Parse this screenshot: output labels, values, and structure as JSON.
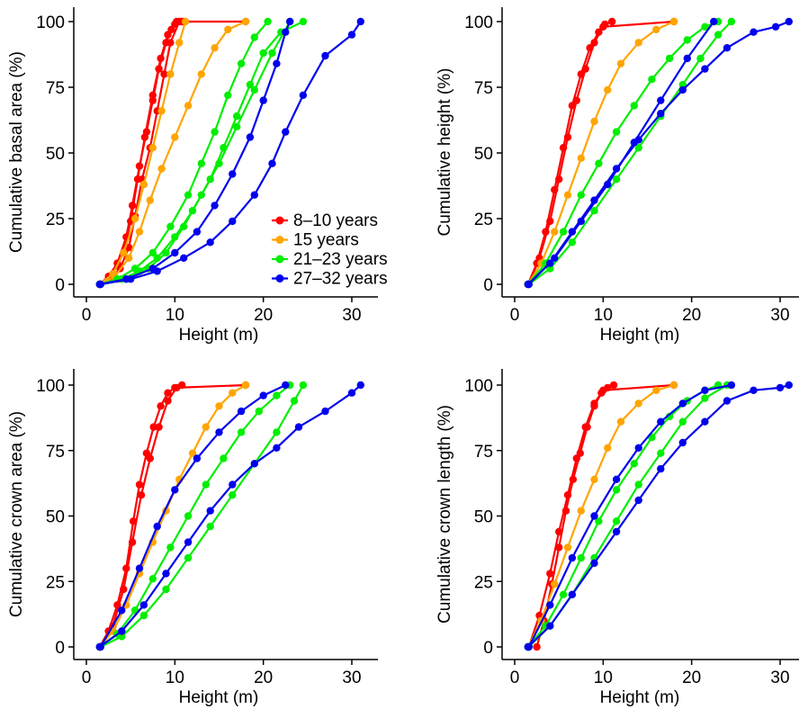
{
  "colors": {
    "8-10 years": "#ff0000",
    "15 years": "#ffa500",
    "21-23 years": "#00ee00",
    "27-32 years": "#0000ee"
  },
  "legend": {
    "placement": "bottom-right of top-left panel",
    "entries": [
      "8–10 years",
      "15 years",
      "21–23 years",
      "27–32 years"
    ]
  },
  "chart_data": [
    {
      "type": "line",
      "panel": "top-left",
      "xlabel": "Height (m)",
      "ylabel": "Cumulative basal area (%)",
      "xlim": [
        0,
        32
      ],
      "ylim": [
        0,
        100
      ],
      "xticks": [
        0,
        10,
        20,
        30
      ],
      "yticks": [
        0,
        25,
        50,
        75,
        100
      ],
      "legend_shown": true,
      "series": [
        {
          "group": "8-10 years",
          "x": [
            1.5,
            2.5,
            3.5,
            4.5,
            5.2,
            6.0,
            6.8,
            7.5,
            8.2,
            9.0,
            9.6,
            10.2,
            11.0
          ],
          "y": [
            0,
            3,
            8,
            18,
            30,
            45,
            58,
            70,
            82,
            92,
            97,
            100,
            100
          ]
        },
        {
          "group": "8-10 years",
          "x": [
            1.5,
            2.8,
            3.8,
            4.8,
            5.5,
            6.3,
            7.2,
            8.0,
            8.8,
            9.5,
            10.5,
            18.0
          ],
          "y": [
            0,
            2,
            6,
            14,
            26,
            40,
            52,
            66,
            80,
            92,
            100,
            100
          ]
        },
        {
          "group": "8-10 years",
          "x": [
            1.6,
            3.0,
            4.2,
            5.0,
            5.8,
            6.6,
            7.5,
            8.4,
            9.2,
            10.0,
            10.8
          ],
          "y": [
            0,
            4,
            12,
            24,
            40,
            56,
            72,
            86,
            95,
            99,
            100
          ]
        },
        {
          "group": "15 years",
          "x": [
            1.5,
            3.0,
            4.2,
            5.5,
            6.5,
            7.5,
            8.5,
            9.5,
            10.5,
            11.2
          ],
          "y": [
            0,
            4,
            12,
            25,
            38,
            52,
            66,
            80,
            92,
            100
          ]
        },
        {
          "group": "15 years",
          "x": [
            1.6,
            3.2,
            4.8,
            6.0,
            7.2,
            8.5,
            10.0,
            11.5,
            13.0,
            14.5,
            16.0,
            18.0
          ],
          "y": [
            0,
            3,
            10,
            20,
            32,
            44,
            56,
            68,
            80,
            90,
            97,
            100
          ]
        },
        {
          "group": "21-23 years",
          "x": [
            1.5,
            3.5,
            5.5,
            7.5,
            9.5,
            11.5,
            13.0,
            14.5,
            16.0,
            17.5,
            19.0,
            20.5
          ],
          "y": [
            0,
            2,
            6,
            12,
            22,
            34,
            46,
            58,
            72,
            84,
            94,
            100
          ]
        },
        {
          "group": "21-23 years",
          "x": [
            1.5,
            4.0,
            6.0,
            8.0,
            10.0,
            12.0,
            14.0,
            15.5,
            17.0,
            18.5,
            20.0,
            22.0,
            24.5
          ],
          "y": [
            0,
            2,
            5,
            10,
            18,
            28,
            40,
            52,
            64,
            76,
            88,
            96,
            100
          ]
        },
        {
          "group": "21-23 years",
          "x": [
            1.6,
            4.5,
            7.0,
            9.0,
            11.0,
            13.0,
            15.0,
            17.0,
            19.0,
            21.0,
            23.0
          ],
          "y": [
            0,
            2,
            6,
            12,
            22,
            34,
            46,
            60,
            74,
            88,
            100
          ]
        },
        {
          "group": "27-32 years",
          "x": [
            1.5,
            4.5,
            7.5,
            10.0,
            12.5,
            14.5,
            16.5,
            18.5,
            20.0,
            21.5,
            22.5,
            23.0
          ],
          "y": [
            0,
            2,
            6,
            12,
            20,
            30,
            42,
            56,
            70,
            84,
            96,
            100
          ]
        },
        {
          "group": "27-32 years",
          "x": [
            1.6,
            5.0,
            8.0,
            11.0,
            14.0,
            16.5,
            19.0,
            21.0,
            22.5,
            24.5,
            27.0,
            30.0,
            31.0
          ],
          "y": [
            0,
            2,
            5,
            10,
            16,
            24,
            34,
            46,
            58,
            72,
            87,
            95,
            100
          ]
        }
      ]
    },
    {
      "type": "line",
      "panel": "top-right",
      "xlabel": "Height (m)",
      "ylabel": "Cumulative height (%)",
      "xlim": [
        0,
        32
      ],
      "ylim": [
        0,
        100
      ],
      "xticks": [
        0,
        10,
        20,
        30
      ],
      "yticks": [
        0,
        25,
        50,
        75,
        100
      ],
      "legend_shown": false,
      "series": [
        {
          "group": "8-10 years",
          "x": [
            1.5,
            2.5,
            3.5,
            4.5,
            5.5,
            6.5,
            7.5,
            8.5,
            9.5,
            10.2,
            11.0
          ],
          "y": [
            0,
            8,
            20,
            36,
            52,
            68,
            80,
            90,
            96,
            99,
            100
          ]
        },
        {
          "group": "8-10 years",
          "x": [
            1.6,
            2.8,
            4.0,
            5.0,
            6.0,
            7.0,
            8.0,
            9.0,
            10.0,
            18.0
          ],
          "y": [
            0,
            10,
            24,
            40,
            56,
            70,
            82,
            92,
            98,
            100
          ]
        },
        {
          "group": "15 years",
          "x": [
            1.5,
            3.0,
            4.5,
            6.0,
            7.5,
            9.0,
            10.5,
            12.0,
            14.0,
            16.0,
            18.0
          ],
          "y": [
            0,
            8,
            20,
            34,
            48,
            62,
            74,
            84,
            92,
            97,
            100
          ]
        },
        {
          "group": "21-23 years",
          "x": [
            1.5,
            3.5,
            5.5,
            7.5,
            9.5,
            11.5,
            13.5,
            15.5,
            17.5,
            19.5,
            21.5,
            23.0
          ],
          "y": [
            0,
            8,
            20,
            34,
            46,
            58,
            68,
            78,
            86,
            93,
            98,
            100
          ]
        },
        {
          "group": "21-23 years",
          "x": [
            1.6,
            4.0,
            6.5,
            9.0,
            11.5,
            14.0,
            16.5,
            19.0,
            21.0,
            23.0,
            24.5
          ],
          "y": [
            0,
            6,
            16,
            28,
            40,
            52,
            64,
            76,
            86,
            95,
            100
          ]
        },
        {
          "group": "27-32 years",
          "x": [
            1.5,
            4.0,
            6.5,
            9.0,
            11.5,
            14.0,
            16.5,
            19.0,
            21.5,
            24.0,
            27.0,
            29.5,
            31.0
          ],
          "y": [
            0,
            8,
            20,
            32,
            44,
            55,
            65,
            74,
            82,
            90,
            96,
            98,
            100
          ]
        },
        {
          "group": "27-32 years",
          "x": [
            1.6,
            4.5,
            7.5,
            10.5,
            13.5,
            16.5,
            19.5,
            22.5
          ],
          "y": [
            0,
            10,
            24,
            38,
            54,
            70,
            86,
            100
          ]
        }
      ]
    },
    {
      "type": "line",
      "panel": "bottom-left",
      "xlabel": "Height (m)",
      "ylabel": "Cumulative crown area (%)",
      "xlim": [
        0,
        32
      ],
      "ylim": [
        0,
        100
      ],
      "xticks": [
        0,
        10,
        20,
        30
      ],
      "yticks": [
        0,
        25,
        50,
        75,
        100
      ],
      "legend_shown": false,
      "series": [
        {
          "group": "8-10 years",
          "x": [
            1.5,
            2.5,
            3.5,
            4.5,
            5.3,
            6.0,
            6.8,
            7.6,
            8.4,
            9.2,
            10.0,
            10.8
          ],
          "y": [
            0,
            6,
            16,
            30,
            48,
            62,
            74,
            84,
            92,
            97,
            99,
            100
          ]
        },
        {
          "group": "8-10 years",
          "x": [
            1.6,
            3.0,
            4.2,
            5.2,
            6.2,
            7.2,
            8.2,
            9.2,
            10.2,
            18.0
          ],
          "y": [
            0,
            8,
            22,
            40,
            58,
            72,
            84,
            94,
            99,
            100
          ]
        },
        {
          "group": "15 years",
          "x": [
            1.5,
            3.0,
            4.5,
            6.0,
            7.5,
            9.0,
            10.5,
            12.0,
            13.5,
            15.0,
            16.5,
            18.0
          ],
          "y": [
            0,
            6,
            16,
            28,
            40,
            52,
            64,
            74,
            84,
            92,
            97,
            100
          ]
        },
        {
          "group": "21-23 years",
          "x": [
            1.5,
            3.5,
            5.5,
            7.5,
            9.5,
            11.5,
            13.5,
            15.5,
            17.5,
            19.5,
            21.5,
            23.0
          ],
          "y": [
            0,
            5,
            14,
            26,
            38,
            50,
            62,
            72,
            82,
            90,
            96,
            100
          ]
        },
        {
          "group": "21-23 years",
          "x": [
            1.6,
            4.0,
            6.5,
            9.0,
            11.5,
            14.0,
            16.5,
            19.0,
            21.5,
            23.5,
            24.5
          ],
          "y": [
            0,
            4,
            12,
            22,
            34,
            46,
            58,
            70,
            82,
            94,
            100
          ]
        },
        {
          "group": "27-32 years",
          "x": [
            1.5,
            4.0,
            6.5,
            9.0,
            11.5,
            14.0,
            16.5,
            19.0,
            21.5,
            24.0,
            27.0,
            30.0,
            31.0
          ],
          "y": [
            0,
            6,
            16,
            28,
            40,
            52,
            62,
            70,
            76,
            84,
            90,
            97,
            100
          ]
        },
        {
          "group": "27-32 years",
          "x": [
            1.6,
            4.0,
            6.0,
            8.0,
            10.0,
            12.5,
            15.0,
            17.5,
            20.0,
            22.5
          ],
          "y": [
            0,
            14,
            30,
            46,
            60,
            72,
            82,
            90,
            96,
            100
          ]
        }
      ]
    },
    {
      "type": "line",
      "panel": "bottom-right",
      "xlabel": "Height (m)",
      "ylabel": "Cumulative crown length (%)",
      "xlim": [
        0,
        32
      ],
      "ylim": [
        0,
        100
      ],
      "xticks": [
        0,
        10,
        20,
        30
      ],
      "yticks": [
        0,
        25,
        50,
        75,
        100
      ],
      "legend_shown": false,
      "series": [
        {
          "group": "8-10 years",
          "x": [
            2.5,
            3.3,
            4.2,
            5.0,
            5.8,
            6.6,
            7.4,
            8.2,
            9.0,
            9.8,
            10.5,
            11.2
          ],
          "y": [
            0,
            10,
            24,
            38,
            52,
            64,
            74,
            84,
            92,
            97,
            99,
            100
          ]
        },
        {
          "group": "8-10 years",
          "x": [
            1.6,
            2.8,
            4.0,
            5.0,
            6.0,
            7.0,
            8.0,
            9.0,
            10.0,
            18.0
          ],
          "y": [
            0,
            12,
            28,
            44,
            58,
            72,
            84,
            93,
            98,
            100
          ]
        },
        {
          "group": "15 years",
          "x": [
            1.5,
            3.0,
            4.5,
            6.0,
            7.5,
            9.0,
            10.5,
            12.0,
            14.0,
            16.0,
            18.0
          ],
          "y": [
            0,
            10,
            24,
            38,
            52,
            64,
            76,
            86,
            93,
            98,
            100
          ]
        },
        {
          "group": "21-23 years",
          "x": [
            1.5,
            3.5,
            5.5,
            7.5,
            9.5,
            11.5,
            13.5,
            15.5,
            17.5,
            19.5,
            21.5,
            23.0
          ],
          "y": [
            0,
            8,
            20,
            34,
            48,
            60,
            70,
            80,
            88,
            94,
            98,
            100
          ]
        },
        {
          "group": "21-23 years",
          "x": [
            1.6,
            4.0,
            6.5,
            9.0,
            11.5,
            14.0,
            16.5,
            19.0,
            21.5,
            24.0
          ],
          "y": [
            0,
            8,
            20,
            34,
            48,
            62,
            74,
            86,
            95,
            100
          ]
        },
        {
          "group": "27-32 years",
          "x": [
            1.5,
            4.0,
            6.5,
            9.0,
            11.5,
            14.0,
            16.5,
            19.0,
            21.5,
            24.0,
            27.0,
            30.0,
            31.0
          ],
          "y": [
            0,
            8,
            20,
            32,
            44,
            56,
            68,
            78,
            86,
            94,
            98,
            99,
            100
          ]
        },
        {
          "group": "27-32 years",
          "x": [
            1.6,
            4.0,
            6.5,
            9.0,
            11.5,
            14.0,
            16.5,
            19.0,
            21.5,
            24.5
          ],
          "y": [
            0,
            16,
            34,
            50,
            64,
            76,
            86,
            93,
            98,
            100
          ]
        }
      ]
    }
  ]
}
